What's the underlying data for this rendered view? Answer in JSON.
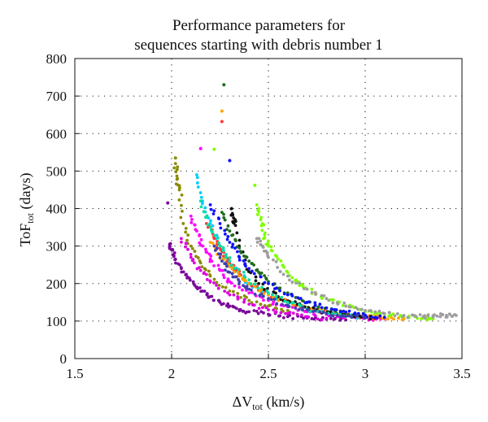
{
  "chart_data": {
    "type": "scatter",
    "title_lines": [
      "Performance parameters for",
      "sequences starting with debris number 1"
    ],
    "xlabel": {
      "base": "ΔV",
      "sub": "tot",
      "unit": " (km/s)"
    },
    "ylabel": {
      "base": "ToF",
      "sub": "tot",
      "unit": " (days)"
    },
    "xlim": [
      1.5,
      3.5
    ],
    "ylim": [
      0,
      800
    ],
    "xticks": [
      1.5,
      2,
      2.5,
      3,
      3.5
    ],
    "xtick_labels": [
      "1.5",
      "2",
      "2.5",
      "3",
      "3.5"
    ],
    "yticks": [
      0,
      100,
      200,
      300,
      400,
      500,
      600,
      700,
      800
    ],
    "ytick_labels": [
      "0",
      "100",
      "200",
      "300",
      "400",
      "500",
      "600",
      "700",
      "800"
    ],
    "grid": "dotted",
    "palette": [
      "#7a0a9a",
      "#ff00ff",
      "#00ccff",
      "#7fff00",
      "#ff3b3b",
      "#ffa500",
      "#111111",
      "#1e6b1e",
      "#1010ff",
      "#9e9e9e",
      "#8b4513",
      "#00e0a0",
      "#dd00dd",
      "#4040b0"
    ],
    "notable_points": [
      {
        "x": 2.27,
        "y": 730,
        "color": "#1e6b1e"
      },
      {
        "x": 2.26,
        "y": 660,
        "color": "#ffa500"
      },
      {
        "x": 2.26,
        "y": 632,
        "color": "#ff3b3b"
      },
      {
        "x": 2.15,
        "y": 560,
        "color": "#ff00ff"
      },
      {
        "x": 2.22,
        "y": 558,
        "color": "#7fff00"
      },
      {
        "x": 2.02,
        "y": 535,
        "color": "#8b8b00"
      },
      {
        "x": 2.3,
        "y": 528,
        "color": "#1010ff"
      },
      {
        "x": 2.43,
        "y": 462,
        "color": "#7fff00"
      },
      {
        "x": 1.98,
        "y": 415,
        "color": "#7a0a9a"
      },
      {
        "x": 3.45,
        "y": 113,
        "color": "#9e9e9e"
      },
      {
        "x": 3.4,
        "y": 117,
        "color": "#9e9e9e"
      }
    ],
    "series": [
      {
        "color": "#7a0a9a",
        "x": [
          1.99,
          2.0,
          2.02,
          2.05,
          2.08,
          2.12,
          2.16,
          2.2,
          2.25,
          2.3,
          2.35,
          2.4,
          2.5,
          2.6,
          2.7,
          2.8,
          2.9
        ],
        "y": [
          305,
          290,
          265,
          240,
          215,
          195,
          180,
          165,
          150,
          140,
          130,
          125,
          118,
          112,
          108,
          105,
          103
        ]
      },
      {
        "color": "#ff00ff",
        "x": [
          2.1,
          2.13,
          2.16,
          2.2,
          2.25,
          2.3,
          2.4,
          2.5,
          2.6,
          2.7,
          2.8,
          2.9,
          3.0,
          3.1
        ],
        "y": [
          380,
          340,
          300,
          265,
          235,
          205,
          175,
          155,
          138,
          125,
          118,
          112,
          108,
          106
        ]
      },
      {
        "color": "#00ccff",
        "x": [
          2.13,
          2.16,
          2.2,
          2.25,
          2.3,
          2.35,
          2.4,
          2.5,
          2.6,
          2.7,
          2.8,
          2.9,
          3.0
        ],
        "y": [
          490,
          420,
          360,
          300,
          255,
          225,
          200,
          170,
          150,
          135,
          122,
          115,
          110
        ]
      },
      {
        "color": "#7fff00",
        "x": [
          2.44,
          2.46,
          2.48,
          2.5,
          2.55,
          2.6,
          2.65,
          2.7,
          2.8,
          2.9,
          3.0,
          3.1,
          3.2,
          3.3,
          3.35
        ],
        "y": [
          410,
          370,
          330,
          300,
          265,
          230,
          205,
          185,
          160,
          140,
          125,
          118,
          112,
          108,
          106
        ]
      },
      {
        "color": "#ff3b3b",
        "x": [
          2.18,
          2.22,
          2.26,
          2.3,
          2.35,
          2.4,
          2.5,
          2.6,
          2.7,
          2.8,
          2.9,
          3.0,
          3.1
        ],
        "y": [
          360,
          320,
          285,
          255,
          225,
          200,
          170,
          150,
          135,
          123,
          115,
          110,
          107
        ]
      },
      {
        "color": "#ffa500",
        "x": [
          2.2,
          2.25,
          2.3,
          2.35,
          2.4,
          2.5,
          2.6,
          2.7,
          2.8,
          2.9,
          3.0,
          3.1,
          3.2
        ],
        "y": [
          310,
          275,
          245,
          220,
          200,
          170,
          150,
          135,
          125,
          117,
          112,
          108,
          106
        ]
      },
      {
        "color": "#111111",
        "x": [
          2.31,
          2.32,
          2.33,
          2.38,
          2.45,
          2.55,
          2.65,
          2.75,
          2.85,
          2.95,
          3.05
        ],
        "y": [
          400,
          375,
          355,
          250,
          200,
          165,
          145,
          130,
          120,
          113,
          109
        ]
      },
      {
        "color": "#1e6b1e",
        "x": [
          2.26,
          2.3,
          2.35,
          2.4,
          2.45,
          2.5,
          2.6,
          2.7,
          2.8,
          2.9,
          3.0
        ],
        "y": [
          390,
          340,
          295,
          260,
          230,
          205,
          175,
          150,
          135,
          122,
          114
        ]
      },
      {
        "color": "#1010ff",
        "x": [
          2.2,
          2.25,
          2.3,
          2.35,
          2.4,
          2.5,
          2.6,
          2.7,
          2.8,
          2.9,
          3.0,
          3.1
        ],
        "y": [
          410,
          360,
          310,
          270,
          240,
          200,
          170,
          150,
          135,
          124,
          116,
          110
        ]
      },
      {
        "color": "#9e9e9e",
        "x": [
          2.44,
          2.47,
          2.5,
          2.6,
          2.7,
          2.8,
          2.9,
          3.0,
          3.1,
          3.2,
          3.3,
          3.35,
          3.42,
          3.47
        ],
        "y": [
          320,
          300,
          270,
          220,
          185,
          160,
          140,
          128,
          120,
          115,
          112,
          114,
          115,
          115
        ]
      },
      {
        "color": "#8b8b00",
        "x": [
          2.02,
          2.03,
          2.04,
          2.06,
          2.1,
          2.15,
          2.2,
          2.3,
          2.4,
          2.5,
          2.6
        ],
        "y": [
          520,
          480,
          450,
          360,
          300,
          255,
          220,
          180,
          155,
          140,
          128
        ]
      },
      {
        "color": "#00e0a0",
        "x": [
          2.15,
          2.2,
          2.25,
          2.3,
          2.4,
          2.5,
          2.6,
          2.7,
          2.8,
          2.9
        ],
        "y": [
          420,
          350,
          300,
          260,
          210,
          175,
          150,
          132,
          120,
          112
        ]
      },
      {
        "color": "#dd00dd",
        "x": [
          2.05,
          2.1,
          2.15,
          2.2,
          2.3,
          2.4,
          2.5,
          2.6,
          2.7,
          2.8
        ],
        "y": [
          320,
          270,
          235,
          205,
          170,
          145,
          130,
          120,
          112,
          107
        ]
      },
      {
        "color": "#4040b0",
        "x": [
          2.22,
          2.26,
          2.3,
          2.35,
          2.4,
          2.5,
          2.6,
          2.7,
          2.8,
          2.9,
          3.0
        ],
        "y": [
          300,
          260,
          230,
          205,
          185,
          160,
          142,
          130,
          120,
          113,
          108
        ]
      }
    ]
  }
}
